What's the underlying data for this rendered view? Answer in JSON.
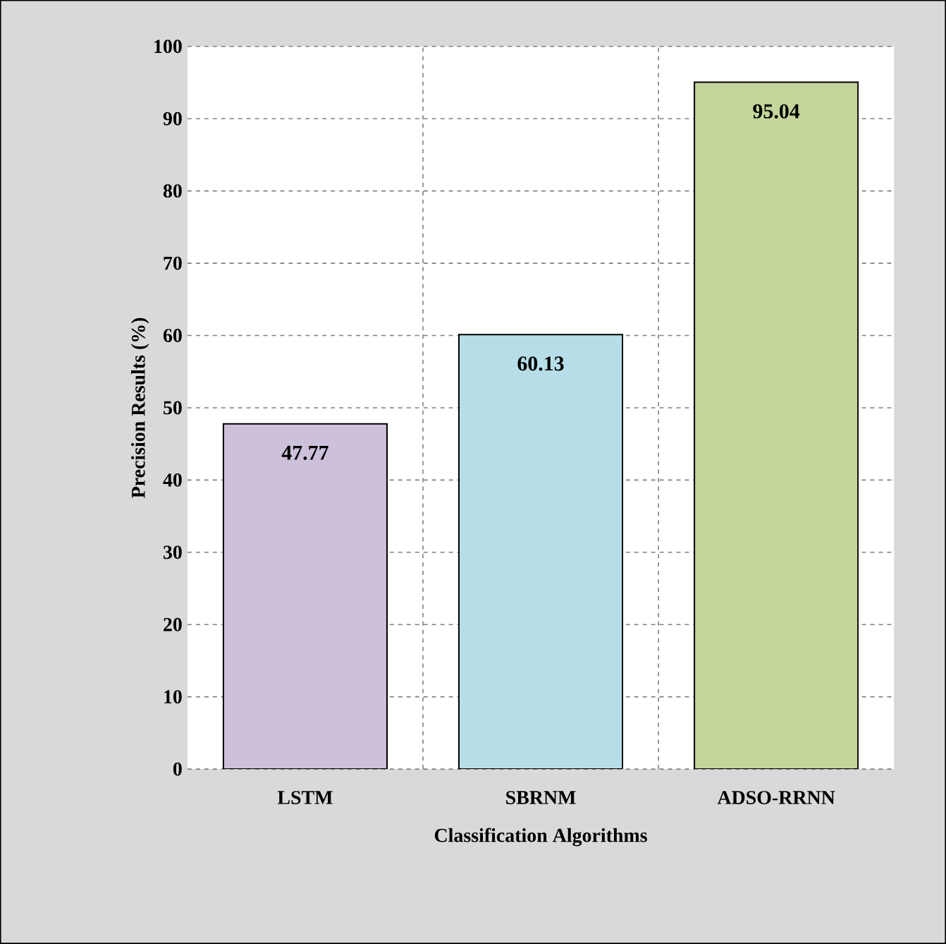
{
  "chart_data": {
    "type": "bar",
    "xlabel": "Classification Algorithms",
    "ylabel": "Precision Results (%)",
    "categories": [
      "LSTM",
      "SBRNM",
      "ADSO-RRNN"
    ],
    "values": [
      47.77,
      60.13,
      95.04
    ],
    "colors": [
      "#ccc0da",
      "#b7dee8",
      "#c3d69b"
    ],
    "ylim": [
      0,
      100
    ],
    "yticks": [
      0,
      10,
      20,
      30,
      40,
      50,
      60,
      70,
      80,
      90,
      100
    ],
    "grid": true,
    "data_labels": true
  }
}
